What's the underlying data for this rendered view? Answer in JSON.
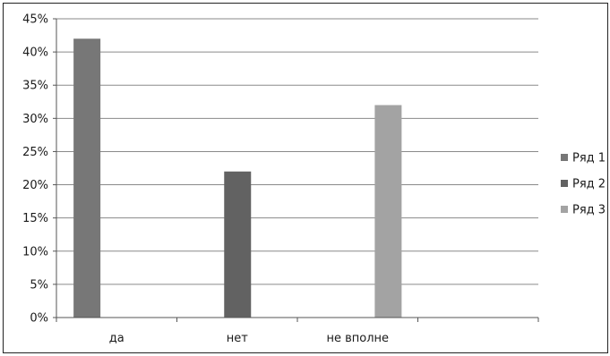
{
  "chart_data": {
    "type": "bar",
    "categories": [
      "да",
      "нет",
      "не вполне",
      ""
    ],
    "series": [
      {
        "name": "Ряд 1",
        "color": "#777777",
        "values": [
          42,
          null,
          null,
          null
        ]
      },
      {
        "name": "Ряд 2",
        "color": "#626262",
        "values": [
          null,
          22,
          null,
          null
        ]
      },
      {
        "name": "Ряд 3",
        "color": "#a3a3a3",
        "values": [
          null,
          null,
          32,
          null
        ]
      }
    ],
    "ylim": [
      0,
      45
    ],
    "ytick_step": 5,
    "ytick_format": "percent",
    "title": "",
    "xlabel": "",
    "ylabel": "",
    "grid": "horizontal",
    "legend_position": "right"
  }
}
